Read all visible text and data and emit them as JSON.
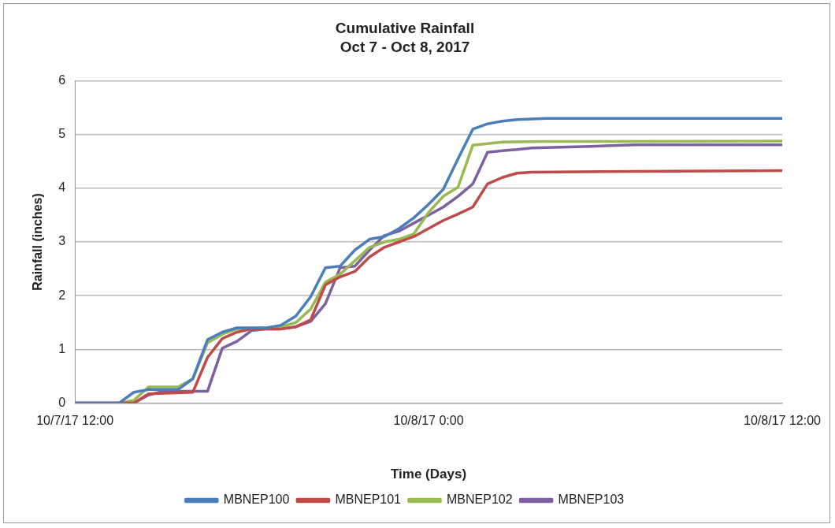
{
  "chart_data": {
    "type": "line",
    "title": "Cumulative Rainfall",
    "subtitle": "Oct 7 - Oct 8, 2017",
    "xlabel": "Time (Days)",
    "ylabel": "Rainfall (inches)",
    "xlim": [
      "2017-10-07T12:00",
      "2017-10-08T12:00"
    ],
    "xticks": [
      {
        "value": "2017-10-07T12:00",
        "label": "10/7/17 12:00"
      },
      {
        "value": "2017-10-08T00:00",
        "label": "10/8/17 0:00"
      },
      {
        "value": "2017-10-08T12:00",
        "label": "10/8/17 12:00"
      }
    ],
    "ylim": [
      0,
      6
    ],
    "yticks": [
      0,
      1,
      2,
      3,
      4,
      5,
      6
    ],
    "grid": "y",
    "legend": "bottom",
    "marker": "none",
    "line_style": "solid",
    "series": [
      {
        "name": "MBNEP100",
        "color": "#4a7ebb",
        "x": [
          "2017-10-07T12:00",
          "2017-10-07T13:30",
          "2017-10-07T14:00",
          "2017-10-07T14:30",
          "2017-10-07T15:30",
          "2017-10-07T16:00",
          "2017-10-07T16:30",
          "2017-10-07T17:00",
          "2017-10-07T17:30",
          "2017-10-07T18:30",
          "2017-10-07T19:00",
          "2017-10-07T19:30",
          "2017-10-07T20:00",
          "2017-10-07T20:30",
          "2017-10-07T21:00",
          "2017-10-07T21:30",
          "2017-10-07T22:00",
          "2017-10-07T22:30",
          "2017-10-07T23:00",
          "2017-10-07T23:30",
          "2017-10-08T00:00",
          "2017-10-08T00:30",
          "2017-10-08T01:00",
          "2017-10-08T01:30",
          "2017-10-08T02:00",
          "2017-10-08T02:30",
          "2017-10-08T03:00",
          "2017-10-08T04:00",
          "2017-10-08T12:00"
        ],
        "values": [
          0,
          0,
          0.2,
          0.25,
          0.25,
          0.45,
          1.18,
          1.32,
          1.4,
          1.4,
          1.45,
          1.62,
          1.98,
          2.52,
          2.55,
          2.85,
          3.05,
          3.1,
          3.25,
          3.45,
          3.7,
          3.98,
          4.55,
          5.1,
          5.2,
          5.25,
          5.28,
          5.3,
          5.3
        ]
      },
      {
        "name": "MBNEP101",
        "color": "#be4b48",
        "x": [
          "2017-10-07T12:00",
          "2017-10-07T14:00",
          "2017-10-07T14:30",
          "2017-10-07T16:00",
          "2017-10-07T16:30",
          "2017-10-07T17:00",
          "2017-10-07T17:30",
          "2017-10-07T18:00",
          "2017-10-07T18:30",
          "2017-10-07T19:00",
          "2017-10-07T19:30",
          "2017-10-07T20:00",
          "2017-10-07T20:30",
          "2017-10-07T21:00",
          "2017-10-07T21:30",
          "2017-10-07T22:00",
          "2017-10-07T22:30",
          "2017-10-07T23:00",
          "2017-10-07T23:30",
          "2017-10-08T00:00",
          "2017-10-08T00:30",
          "2017-10-08T01:00",
          "2017-10-08T01:30",
          "2017-10-08T02:00",
          "2017-10-08T02:30",
          "2017-10-08T03:00",
          "2017-10-08T03:30",
          "2017-10-08T12:00"
        ],
        "values": [
          0,
          0,
          0.17,
          0.2,
          0.85,
          1.2,
          1.32,
          1.38,
          1.38,
          1.38,
          1.42,
          1.55,
          2.2,
          2.35,
          2.45,
          2.72,
          2.9,
          3.0,
          3.1,
          3.25,
          3.4,
          3.52,
          3.65,
          4.08,
          4.2,
          4.28,
          4.3,
          4.33
        ]
      },
      {
        "name": "MBNEP102",
        "color": "#98b954",
        "x": [
          "2017-10-07T12:00",
          "2017-10-07T13:30",
          "2017-10-07T14:00",
          "2017-10-07T14:30",
          "2017-10-07T15:30",
          "2017-10-07T16:00",
          "2017-10-07T16:30",
          "2017-10-07T17:00",
          "2017-10-07T17:30",
          "2017-10-07T18:30",
          "2017-10-07T19:00",
          "2017-10-07T19:30",
          "2017-10-07T20:00",
          "2017-10-07T20:30",
          "2017-10-07T21:00",
          "2017-10-07T21:30",
          "2017-10-07T22:00",
          "2017-10-07T22:30",
          "2017-10-07T23:00",
          "2017-10-07T23:30",
          "2017-10-08T00:00",
          "2017-10-08T00:30",
          "2017-10-08T01:00",
          "2017-10-08T01:30",
          "2017-10-08T02:00",
          "2017-10-08T02:30",
          "2017-10-08T04:00",
          "2017-10-08T12:00"
        ],
        "values": [
          0,
          0,
          0.05,
          0.3,
          0.3,
          0.45,
          1.12,
          1.28,
          1.38,
          1.4,
          1.42,
          1.5,
          1.75,
          2.25,
          2.4,
          2.65,
          2.9,
          3.0,
          3.05,
          3.15,
          3.55,
          3.85,
          4.02,
          4.8,
          4.83,
          4.86,
          4.87,
          4.88
        ]
      },
      {
        "name": "MBNEP103",
        "color": "#7d60a0",
        "x": [
          "2017-10-07T12:00",
          "2017-10-07T14:00",
          "2017-10-07T14:30",
          "2017-10-07T15:00",
          "2017-10-07T16:30",
          "2017-10-07T17:00",
          "2017-10-07T17:30",
          "2017-10-07T18:00",
          "2017-10-07T18:30",
          "2017-10-07T19:00",
          "2017-10-07T19:30",
          "2017-10-07T20:00",
          "2017-10-07T20:30",
          "2017-10-07T21:00",
          "2017-10-07T21:30",
          "2017-10-07T22:00",
          "2017-10-07T22:30",
          "2017-10-07T23:00",
          "2017-10-07T23:30",
          "2017-10-08T00:00",
          "2017-10-08T00:30",
          "2017-10-08T01:00",
          "2017-10-08T01:30",
          "2017-10-08T02:00",
          "2017-10-08T02:30",
          "2017-10-08T03:00",
          "2017-10-08T03:30",
          "2017-10-08T05:30",
          "2017-10-08T07:00",
          "2017-10-08T12:00"
        ],
        "values": [
          0,
          0,
          0.15,
          0.22,
          0.22,
          1.02,
          1.15,
          1.35,
          1.38,
          1.38,
          1.42,
          1.52,
          1.85,
          2.52,
          2.55,
          2.85,
          3.12,
          3.2,
          3.35,
          3.5,
          3.65,
          3.85,
          4.08,
          4.67,
          4.7,
          4.72,
          4.75,
          4.78,
          4.81,
          4.81
        ]
      }
    ]
  }
}
